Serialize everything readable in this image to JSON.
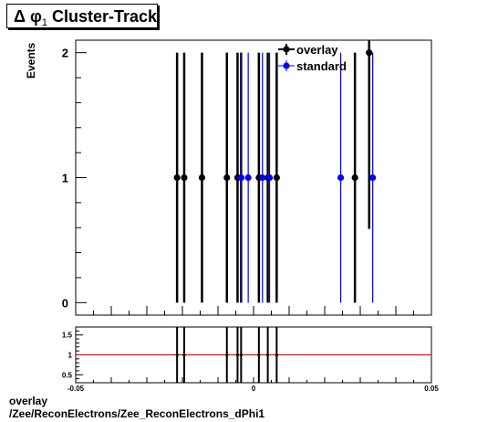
{
  "title": {
    "greek": "Δ φ",
    "sub": "1",
    "text": "Cluster-Track"
  },
  "footer": {
    "line1": "overlay",
    "line2": "/Zee/ReconElectrons/Zee_ReconElectrons_dPhi1"
  },
  "colors": {
    "overlay": "#000000",
    "standard": "#0000ff",
    "ratio_line": "#cc0000",
    "frame": "#000000"
  },
  "chart_data": [
    {
      "type": "scatter",
      "title": "Δ φ1 Cluster-Track",
      "ylabel": "Events",
      "xlim": [
        -0.05,
        0.05
      ],
      "ylim": [
        -0.1,
        2.1
      ],
      "y_ticks": [
        "0",
        "1",
        "2"
      ],
      "legend": {
        "placement": "top-right",
        "entries": [
          "overlay",
          "standard"
        ]
      },
      "series": [
        {
          "name": "overlay",
          "points": [
            {
              "x": -0.0215,
              "y": 1,
              "err": 1
            },
            {
              "x": -0.0195,
              "y": 1,
              "err": 1
            },
            {
              "x": -0.0145,
              "y": 1,
              "err": 1
            },
            {
              "x": -0.0075,
              "y": 1,
              "err": 1
            },
            {
              "x": -0.0045,
              "y": 1,
              "err": 1
            },
            {
              "x": -0.0035,
              "y": 1,
              "err": 1
            },
            {
              "x": 0.0015,
              "y": 1,
              "err": 1
            },
            {
              "x": 0.004,
              "y": 1,
              "err": 1
            },
            {
              "x": 0.0065,
              "y": 1,
              "err": 1
            },
            {
              "x": 0.0285,
              "y": 1,
              "err": 1
            },
            {
              "x": 0.0325,
              "y": 2,
              "err": 1.41
            }
          ]
        },
        {
          "name": "standard",
          "points": [
            {
              "x": -0.0035,
              "y": 1,
              "err": 1
            },
            {
              "x": -0.0015,
              "y": 1,
              "err": 1
            },
            {
              "x": 0.0025,
              "y": 1,
              "err": 1
            },
            {
              "x": 0.0045,
              "y": 1,
              "err": 1
            },
            {
              "x": 0.0245,
              "y": 1,
              "err": 1
            },
            {
              "x": 0.0335,
              "y": 1,
              "err": 1
            }
          ]
        }
      ]
    },
    {
      "type": "scatter",
      "title": "",
      "xlim": [
        -0.05,
        0.05
      ],
      "ylim": [
        0.3,
        1.7
      ],
      "x_ticks": [
        "-0.05",
        "0",
        "0.05"
      ],
      "y_ticks": [
        "0.5",
        "1",
        "1.5"
      ],
      "reference_line": 1,
      "points": [
        {
          "x": -0.0215,
          "y": 1
        },
        {
          "x": -0.0195,
          "y": 1
        },
        {
          "x": -0.0075,
          "y": 1
        },
        {
          "x": -0.0045,
          "y": 1
        },
        {
          "x": -0.0035,
          "y": 1
        },
        {
          "x": 0.0015,
          "y": 1
        },
        {
          "x": 0.004,
          "y": 1
        },
        {
          "x": 0.0065,
          "y": 1
        }
      ]
    }
  ]
}
